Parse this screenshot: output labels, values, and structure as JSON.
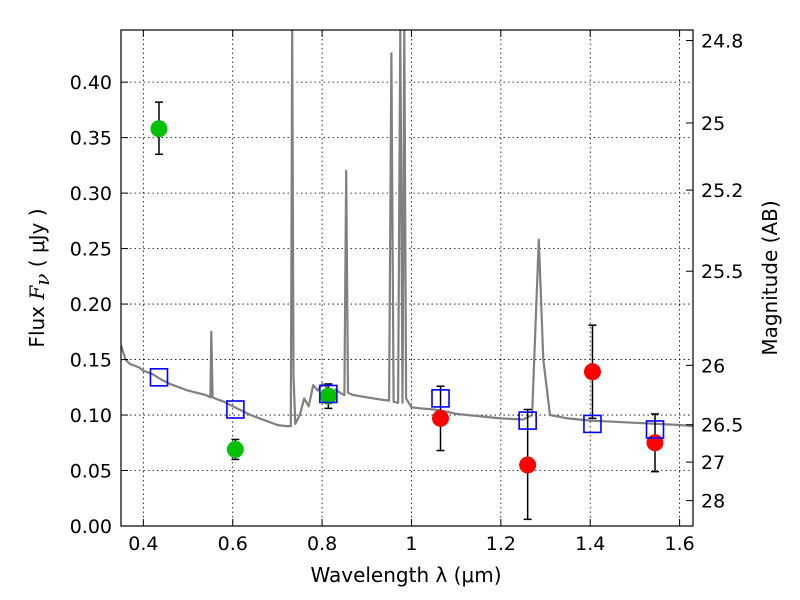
{
  "chart_data": {
    "type": "scatter",
    "title": "",
    "xlabel": "Wavelength  λ (μm)",
    "ylabel": {
      "prefix": "Flux  ",
      "symbol": "F",
      "subscript": "ν",
      "unit": "  ( μJy )"
    },
    "y2label": "Magnitude (AB)",
    "xlim": [
      0.35,
      1.63
    ],
    "ylim": [
      0.0,
      0.447
    ],
    "xticks": [
      0.4,
      0.6,
      0.8,
      1.0,
      1.2,
      1.4,
      1.6
    ],
    "xtick_labels": [
      "0.4",
      "0.6",
      "0.8",
      "1",
      "1.2",
      "1.4",
      "1.6"
    ],
    "yticks": [
      0.0,
      0.05,
      0.1,
      0.15,
      0.2,
      0.25,
      0.3,
      0.35,
      0.4
    ],
    "ytick_labels": [
      "0.00",
      "0.05",
      "0.10",
      "0.15",
      "0.20",
      "0.25",
      "0.30",
      "0.35",
      "0.40"
    ],
    "y2ticks": [
      {
        "label": "24.8",
        "flux": 0.4375
      },
      {
        "label": "25",
        "flux": 0.3632
      },
      {
        "label": "25.2",
        "flux": 0.3027
      },
      {
        "label": "25.5",
        "flux": 0.2296
      },
      {
        "label": "26",
        "flux": 0.1448
      },
      {
        "label": "26.5",
        "flux": 0.0913
      },
      {
        "label": "27",
        "flux": 0.0576
      },
      {
        "label": "28",
        "flux": 0.0229
      }
    ],
    "grid": true,
    "series": [
      {
        "marker": "circle",
        "color": "#00c000",
        "points": [
          {
            "x": 0.435,
            "y": 0.358,
            "ylow": 0.335,
            "yhigh": 0.382
          },
          {
            "x": 0.606,
            "y": 0.069,
            "ylow": 0.06,
            "yhigh": 0.078
          },
          {
            "x": 0.814,
            "y": 0.117,
            "ylow": 0.106,
            "yhigh": 0.128
          }
        ]
      },
      {
        "marker": "circle",
        "color": "#ff0000",
        "points": [
          {
            "x": 1.065,
            "y": 0.097,
            "ylow": 0.068,
            "yhigh": 0.126
          },
          {
            "x": 1.26,
            "y": 0.055,
            "ylow": 0.006,
            "yhigh": 0.105
          },
          {
            "x": 1.405,
            "y": 0.139,
            "ylow": 0.097,
            "yhigh": 0.181
          },
          {
            "x": 1.545,
            "y": 0.075,
            "ylow": 0.049,
            "yhigh": 0.101
          }
        ]
      },
      {
        "marker": "square-open",
        "color": "#0000ff",
        "points": [
          {
            "x": 0.435,
            "y": 0.134
          },
          {
            "x": 0.606,
            "y": 0.105
          },
          {
            "x": 0.814,
            "y": 0.119
          },
          {
            "x": 1.065,
            "y": 0.115
          },
          {
            "x": 1.26,
            "y": 0.095
          },
          {
            "x": 1.405,
            "y": 0.092
          },
          {
            "x": 1.545,
            "y": 0.087
          }
        ]
      }
    ],
    "model_spectrum": {
      "color": "#808080",
      "points": [
        [
          0.35,
          0.163
        ],
        [
          0.36,
          0.15
        ],
        [
          0.37,
          0.146
        ],
        [
          0.39,
          0.143
        ],
        [
          0.4,
          0.14
        ],
        [
          0.42,
          0.137
        ],
        [
          0.44,
          0.132
        ],
        [
          0.46,
          0.128
        ],
        [
          0.48,
          0.125
        ],
        [
          0.5,
          0.122
        ],
        [
          0.52,
          0.12
        ],
        [
          0.54,
          0.118
        ],
        [
          0.55,
          0.116
        ],
        [
          0.552,
          0.175
        ],
        [
          0.555,
          0.116
        ],
        [
          0.56,
          0.115
        ],
        [
          0.58,
          0.112
        ],
        [
          0.6,
          0.108
        ],
        [
          0.62,
          0.104
        ],
        [
          0.64,
          0.1
        ],
        [
          0.66,
          0.097
        ],
        [
          0.68,
          0.094
        ],
        [
          0.7,
          0.091
        ],
        [
          0.72,
          0.09
        ],
        [
          0.73,
          0.09
        ],
        [
          0.733,
          0.448
        ],
        [
          0.736,
          0.135
        ],
        [
          0.74,
          0.092
        ],
        [
          0.75,
          0.1
        ],
        [
          0.76,
          0.115
        ],
        [
          0.77,
          0.108
        ],
        [
          0.78,
          0.127
        ],
        [
          0.79,
          0.122
        ],
        [
          0.8,
          0.128
        ],
        [
          0.81,
          0.125
        ],
        [
          0.82,
          0.118
        ],
        [
          0.83,
          0.123
        ],
        [
          0.84,
          0.12
        ],
        [
          0.85,
          0.118
        ],
        [
          0.854,
          0.32
        ],
        [
          0.858,
          0.12
        ],
        [
          0.87,
          0.118
        ],
        [
          0.9,
          0.116
        ],
        [
          0.93,
          0.114
        ],
        [
          0.95,
          0.113
        ],
        [
          0.955,
          0.426
        ],
        [
          0.96,
          0.112
        ],
        [
          0.97,
          0.111
        ],
        [
          0.975,
          0.448
        ],
        [
          0.98,
          0.111
        ],
        [
          0.984,
          0.448
        ],
        [
          0.988,
          0.115
        ],
        [
          1.0,
          0.107
        ],
        [
          1.02,
          0.106
        ],
        [
          1.05,
          0.105
        ],
        [
          1.08,
          0.103
        ],
        [
          1.1,
          0.101
        ],
        [
          1.15,
          0.099
        ],
        [
          1.2,
          0.097
        ],
        [
          1.25,
          0.096
        ],
        [
          1.27,
          0.1
        ],
        [
          1.285,
          0.258
        ],
        [
          1.295,
          0.15
        ],
        [
          1.31,
          0.1
        ],
        [
          1.35,
          0.097
        ],
        [
          1.4,
          0.095
        ],
        [
          1.45,
          0.094
        ],
        [
          1.5,
          0.093
        ],
        [
          1.55,
          0.092
        ],
        [
          1.6,
          0.091
        ],
        [
          1.63,
          0.09
        ]
      ]
    }
  }
}
